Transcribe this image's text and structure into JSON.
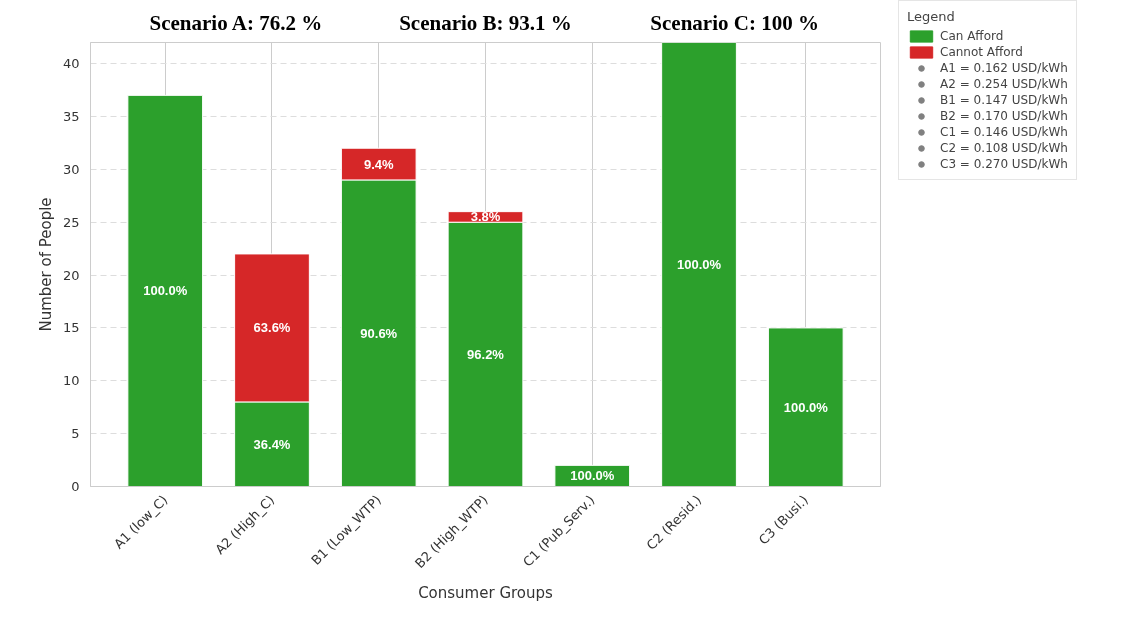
{
  "chart_data": {
    "type": "bar",
    "stacked": true,
    "xlabel": "Consumer Groups",
    "ylabel": "Number of People",
    "legend_title": "Legend",
    "legend": "right",
    "categories": [
      "A1 (low_C)",
      "A2 (High_C)",
      "B1 (Low_WTP)",
      "B2 (High_WTP)",
      "C1 (Pub_Serv.)",
      "C2 (Resid.)",
      "C3 (Busi.)"
    ],
    "series": [
      {
        "name": "Can Afford",
        "color": "#2ca02c",
        "values": [
          37,
          8,
          29,
          25,
          2,
          42,
          15
        ]
      },
      {
        "name": "Cannot Afford",
        "color": "#d62728",
        "values": [
          null,
          14,
          3,
          1,
          null,
          null,
          null
        ]
      },
      {
        "type": "scatter",
        "name": "A1 = 0.162 USD/kWh",
        "color": "#808080",
        "values": [
          null,
          null,
          null,
          null,
          null,
          null,
          null
        ]
      },
      {
        "type": "scatter",
        "name": "A2 = 0.254 USD/kWh",
        "color": "#808080",
        "values": [
          null,
          null,
          null,
          null,
          null,
          null,
          null
        ]
      },
      {
        "type": "scatter",
        "name": "B1 = 0.147 USD/kWh",
        "color": "#808080",
        "values": [
          null,
          null,
          null,
          null,
          null,
          null,
          null
        ]
      },
      {
        "type": "scatter",
        "name": "B2 = 0.170 USD/kWh",
        "color": "#808080",
        "values": [
          null,
          null,
          null,
          null,
          null,
          null,
          null
        ]
      },
      {
        "type": "scatter",
        "name": "C1 = 0.146 USD/kWh",
        "color": "#808080",
        "values": [
          null,
          null,
          null,
          null,
          null,
          null,
          null
        ]
      },
      {
        "type": "scatter",
        "name": "C2 = 0.108 USD/kWh",
        "color": "#808080",
        "values": [
          null,
          null,
          null,
          null,
          null,
          null,
          null
        ]
      },
      {
        "type": "scatter",
        "name": "C3 = 0.270 USD/kWh",
        "color": "#808080",
        "values": [
          null,
          null,
          null,
          null,
          null,
          null,
          null
        ]
      }
    ],
    "annotations": [
      "Scenario A: 76.2 %",
      "Scenario B: 93.1 %",
      "Scenario C: 100 %",
      "100.0%",
      "36.4%",
      "90.6%",
      "96.2%",
      "100.0%",
      "100.0%",
      "100.0%",
      "63.6%",
      "9.4%",
      "3.8%"
    ],
    "ylim": [
      0,
      42
    ],
    "yticks": [
      0,
      5,
      10,
      15,
      20,
      25,
      30,
      35,
      40
    ],
    "grid": true
  }
}
